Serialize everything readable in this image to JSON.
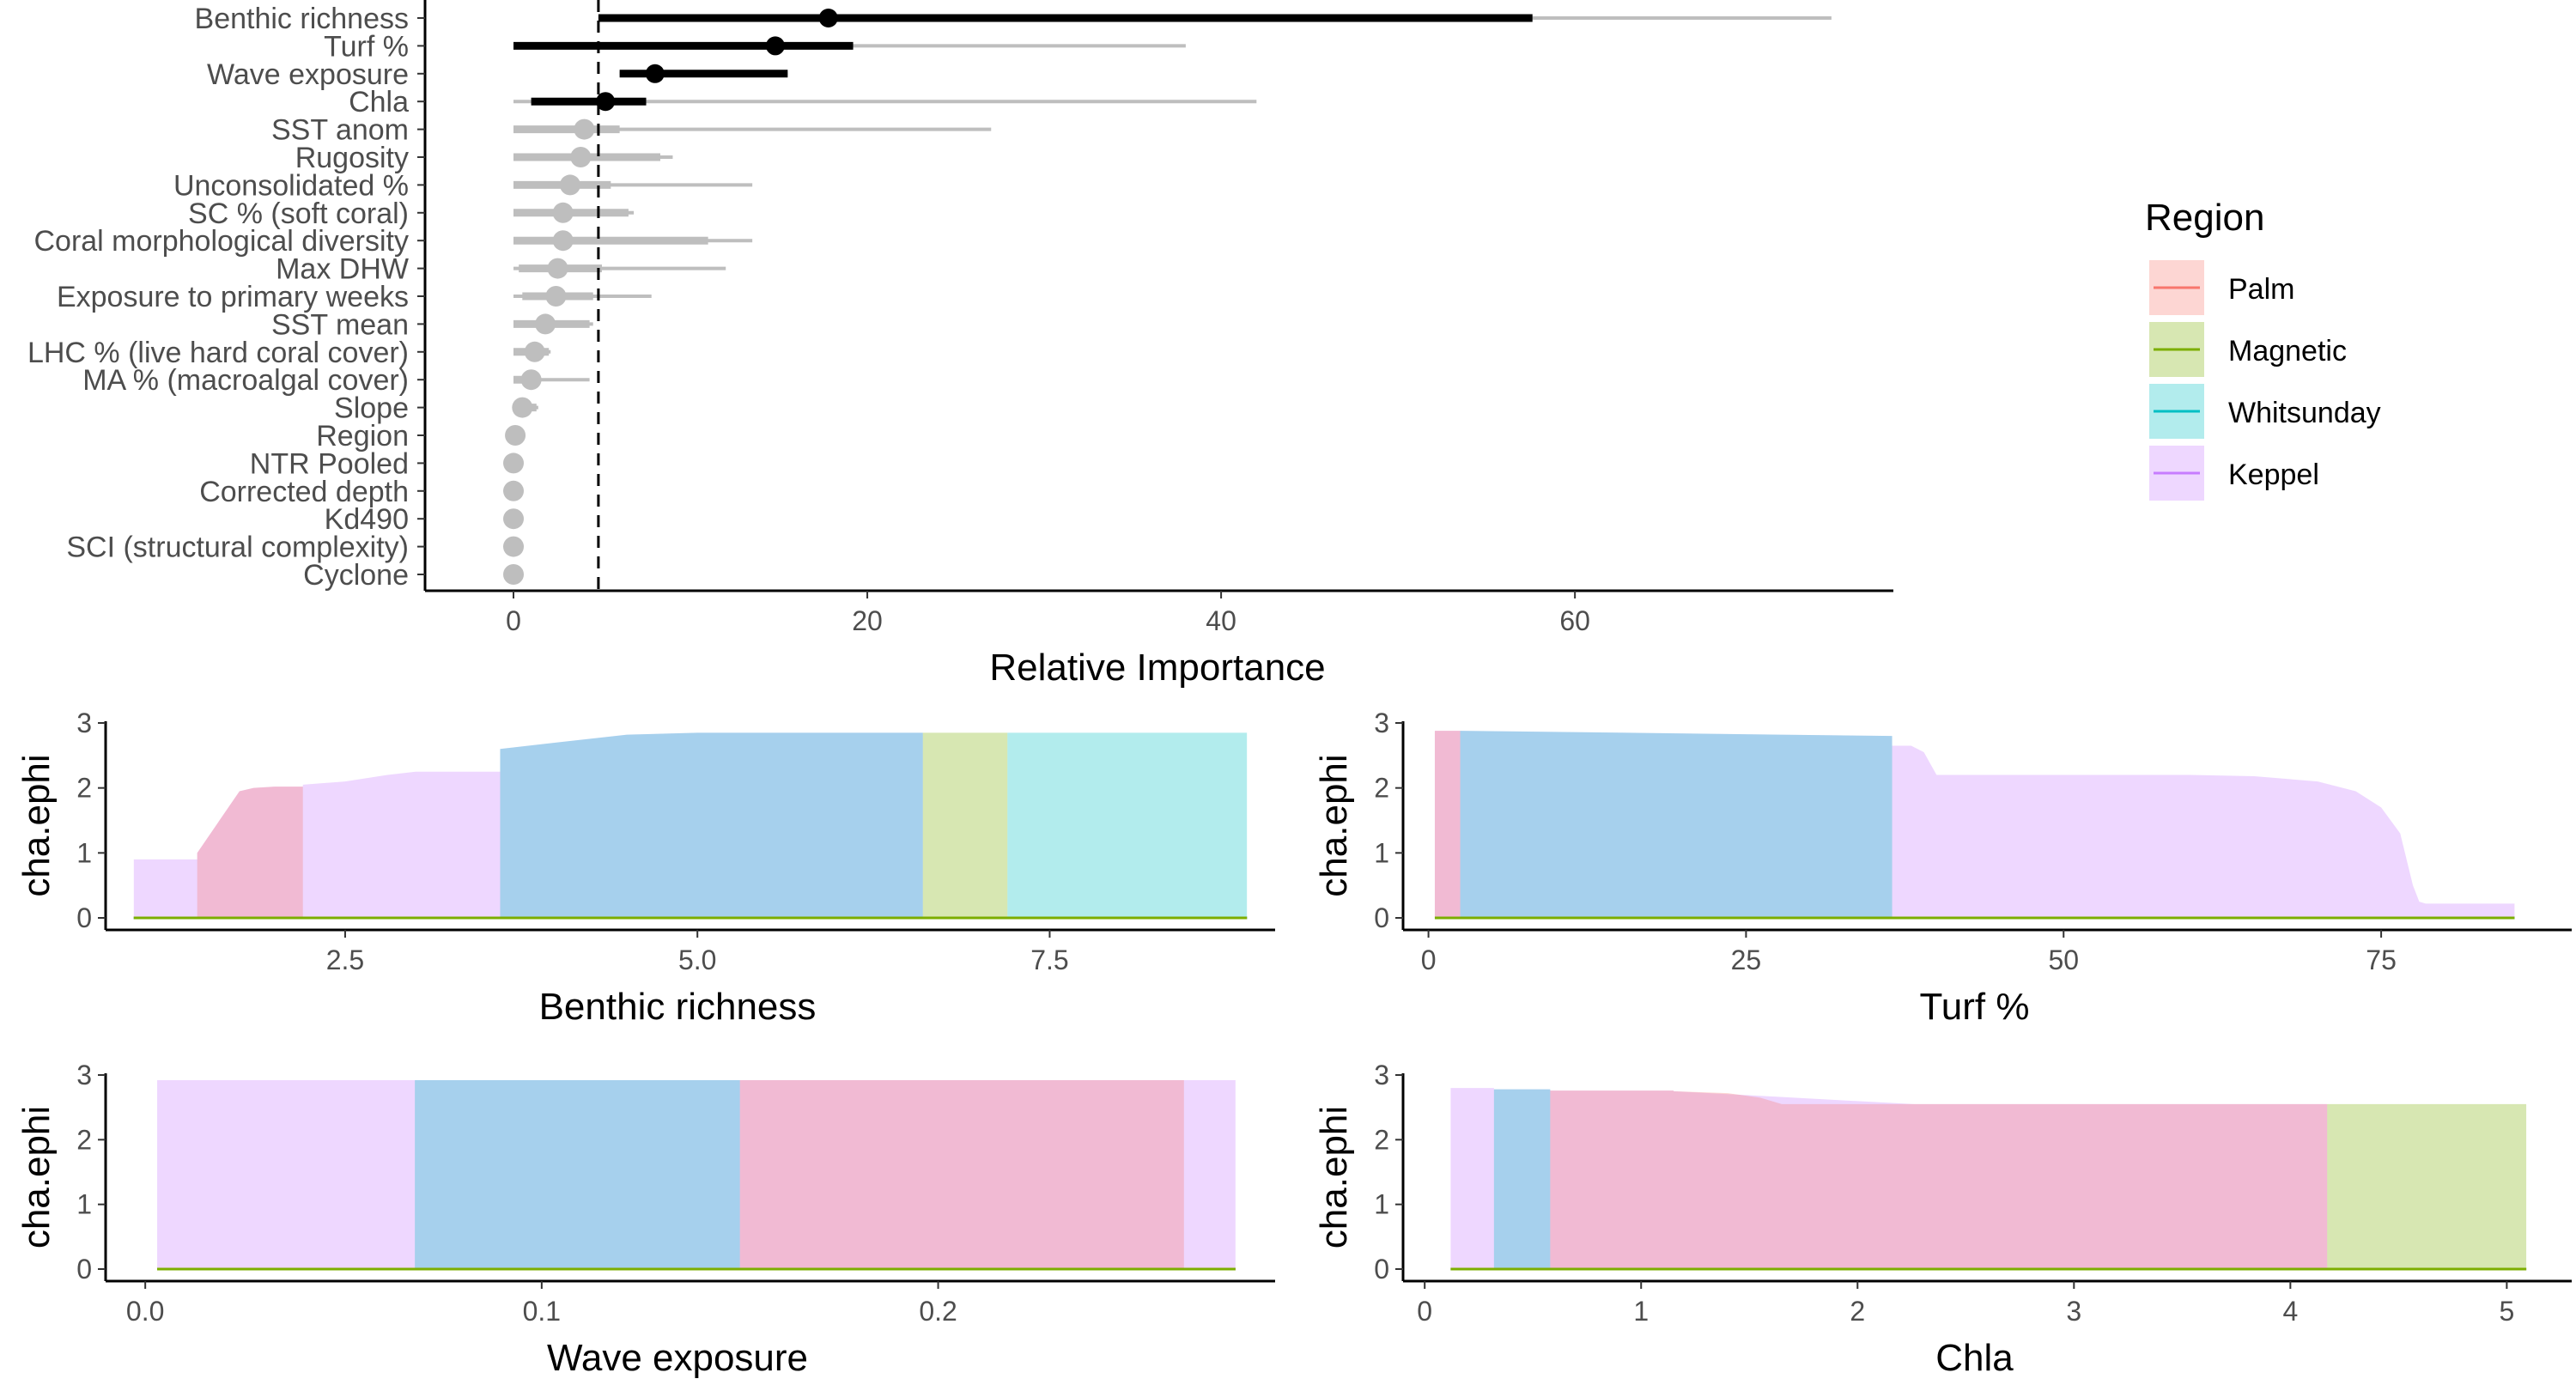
{
  "colors": {
    "Palm": "#F8766D",
    "Magnetic": "#7CAE00",
    "Whitsunday": "#00BFC4",
    "Keppel": "#C77CFF",
    "highlight": "#000000",
    "muted": "#BEBEBE"
  },
  "legend": {
    "title": "Region",
    "items": [
      {
        "label": "Palm",
        "color": "#F8766D"
      },
      {
        "label": "Magnetic",
        "color": "#7CAE00"
      },
      {
        "label": "Whitsunday",
        "color": "#00BFC4"
      },
      {
        "label": "Keppel",
        "color": "#C77CFF"
      }
    ]
  },
  "chart_data": [
    {
      "type": "dot-interval",
      "xlabel": "Relative Importance",
      "xlim": [
        -5,
        78
      ],
      "xticks": [
        0,
        20,
        40,
        60
      ],
      "threshold": 4.8,
      "variables": [
        {
          "name": "Benthic richness",
          "median": 17.8,
          "inner": [
            4.8,
            57.6
          ],
          "outer": [
            4.8,
            74.5
          ],
          "highlight": true
        },
        {
          "name": "Turf %",
          "median": 14.8,
          "inner": [
            0,
            19.2
          ],
          "outer": [
            0,
            38
          ],
          "highlight": true
        },
        {
          "name": "Wave exposure",
          "median": 8,
          "inner": [
            6,
            15.5
          ],
          "outer": [
            6,
            15.5
          ],
          "highlight": true
        },
        {
          "name": "Chla",
          "median": 5.2,
          "inner": [
            1,
            7.5
          ],
          "outer": [
            0,
            42
          ],
          "highlight": true
        },
        {
          "name": "SST anom",
          "median": 4,
          "inner": [
            0,
            6
          ],
          "outer": [
            0,
            27
          ],
          "highlight": false
        },
        {
          "name": "Rugosity",
          "median": 3.8,
          "inner": [
            0,
            8.3
          ],
          "outer": [
            0,
            9
          ],
          "highlight": false
        },
        {
          "name": "Unconsolidated %",
          "median": 3.2,
          "inner": [
            0,
            5.5
          ],
          "outer": [
            0,
            13.5
          ],
          "highlight": false
        },
        {
          "name": "SC % (soft coral)",
          "median": 2.8,
          "inner": [
            0,
            6.5
          ],
          "outer": [
            0,
            6.8
          ],
          "highlight": false
        },
        {
          "name": "Coral morphological diversity",
          "median": 2.8,
          "inner": [
            0,
            11
          ],
          "outer": [
            0,
            13.5
          ],
          "highlight": false
        },
        {
          "name": "Max DHW",
          "median": 2.5,
          "inner": [
            0.3,
            5
          ],
          "outer": [
            0,
            12
          ],
          "highlight": false
        },
        {
          "name": "Exposure to primary weeks",
          "median": 2.4,
          "inner": [
            0.5,
            4.5
          ],
          "outer": [
            0,
            7.8
          ],
          "highlight": false
        },
        {
          "name": "SST mean",
          "median": 1.8,
          "inner": [
            0,
            4.3
          ],
          "outer": [
            0,
            4.5
          ],
          "highlight": false
        },
        {
          "name": "LHC % (live hard coral cover)",
          "median": 1.2,
          "inner": [
            0,
            2
          ],
          "outer": [
            0,
            2.1
          ],
          "highlight": false
        },
        {
          "name": "MA % (macroalgal cover)",
          "median": 1,
          "inner": [
            0,
            1.5
          ],
          "outer": [
            0,
            4.3
          ],
          "highlight": false
        },
        {
          "name": "Slope",
          "median": 0.5,
          "inner": [
            0,
            1.3
          ],
          "outer": [
            0,
            1.4
          ],
          "highlight": false
        },
        {
          "name": "Region",
          "median": 0.1,
          "inner": [
            0,
            0.5
          ],
          "outer": [
            0,
            0.6
          ],
          "highlight": false
        },
        {
          "name": "NTR Pooled",
          "median": 0,
          "inner": [
            0,
            0
          ],
          "outer": [
            0,
            0
          ],
          "highlight": false
        },
        {
          "name": "Corrected depth",
          "median": 0,
          "inner": [
            0,
            0
          ],
          "outer": [
            0,
            0
          ],
          "highlight": false
        },
        {
          "name": "Kd490",
          "median": 0,
          "inner": [
            0,
            0
          ],
          "outer": [
            0,
            0
          ],
          "highlight": false
        },
        {
          "name": "SCI (structural complexity)",
          "median": 0,
          "inner": [
            0,
            0
          ],
          "outer": [
            0,
            0
          ],
          "highlight": false
        },
        {
          "name": "Cyclone",
          "median": 0,
          "inner": [
            0,
            0
          ],
          "outer": [
            0,
            0
          ],
          "highlight": false
        }
      ]
    },
    {
      "type": "area",
      "xlabel": "Benthic richness",
      "ylabel": "cha.ephi",
      "xlim": [
        0.8,
        9.1
      ],
      "ylim": [
        0,
        3.1
      ],
      "xticks": [
        2.5,
        5.0,
        7.5
      ],
      "xtick_labels": [
        "2.5",
        "5.0",
        "7.5"
      ],
      "yticks": [
        0,
        1,
        2,
        3
      ],
      "series": [
        {
          "name": "Keppel",
          "x": [
            1.0,
            1.45,
            1.45,
            1.75,
            1.85,
            2.0,
            2.2,
            2.2,
            2.5,
            2.8,
            3.0,
            3.6,
            3.6,
            4.0,
            4.5,
            5.0,
            6.0,
            6.6,
            6.6,
            8.9
          ],
          "y": [
            0.9,
            0.9,
            1.0,
            1.95,
            2.0,
            2.02,
            2.02,
            2.05,
            2.1,
            2.2,
            2.25,
            2.25,
            2.6,
            2.7,
            2.82,
            2.85,
            2.85,
            2.85,
            0,
            0
          ]
        },
        {
          "name": "Palm",
          "x": [
            1.0,
            1.45,
            1.45,
            1.75,
            1.85,
            2.0,
            2.2,
            2.2,
            6.6,
            7.2,
            7.2,
            8.9
          ],
          "y": [
            0,
            0,
            1.0,
            1.95,
            2.0,
            2.02,
            2.02,
            0,
            0,
            0,
            0,
            0
          ]
        },
        {
          "name": "Whitsunday",
          "x": [
            1.0,
            3.6,
            3.6,
            4.0,
            4.5,
            5.0,
            6.6,
            6.6,
            7.2,
            7.2,
            7.8,
            8.9
          ],
          "y": [
            0,
            0,
            2.6,
            2.7,
            2.82,
            2.85,
            2.85,
            0,
            0,
            2.85,
            2.85,
            2.85
          ]
        },
        {
          "name": "Magnetic",
          "x": [
            1.0,
            6.6,
            6.6,
            7.2,
            7.2,
            8.9
          ],
          "y": [
            0,
            0,
            2.85,
            2.85,
            0,
            0
          ]
        }
      ]
    },
    {
      "type": "area",
      "xlabel": "Turf %",
      "ylabel": "cha.ephi",
      "xlim": [
        -2,
        90
      ],
      "ylim": [
        0,
        3.1
      ],
      "xticks": [
        0,
        25,
        50,
        75
      ],
      "xtick_labels": [
        "0",
        "25",
        "50",
        "75"
      ],
      "yticks": [
        0,
        1,
        2,
        3
      ],
      "series": [
        {
          "name": "Keppel",
          "x": [
            0.5,
            2.5,
            2.5,
            36.5,
            36.5,
            38,
            39,
            40,
            50,
            60,
            65,
            70,
            73,
            75,
            76.5,
            77.5,
            78,
            78.5,
            85.5
          ],
          "y": [
            2.88,
            2.88,
            2.88,
            2.8,
            2.65,
            2.65,
            2.55,
            2.2,
            2.2,
            2.2,
            2.18,
            2.1,
            1.95,
            1.7,
            1.3,
            0.5,
            0.25,
            0.22,
            0.22
          ]
        },
        {
          "name": "Palm",
          "x": [
            0.5,
            2.5,
            2.5,
            85.5
          ],
          "y": [
            2.88,
            2.88,
            0,
            0
          ]
        },
        {
          "name": "Whitsunday",
          "x": [
            0.5,
            2.5,
            2.5,
            36.5,
            36.5,
            85.5
          ],
          "y": [
            0,
            0,
            2.88,
            2.8,
            0,
            0
          ]
        },
        {
          "name": "Magnetic",
          "x": [
            0.5,
            85.5
          ],
          "y": [
            0,
            0
          ]
        }
      ]
    },
    {
      "type": "area",
      "xlabel": "Wave exposure",
      "ylabel": "cha.ephi",
      "xlim": [
        -0.01,
        0.285
      ],
      "ylim": [
        0,
        3.1
      ],
      "xticks": [
        0.0,
        0.1,
        0.2
      ],
      "xtick_labels": [
        "0.0",
        "0.1",
        "0.2"
      ],
      "yticks": [
        0,
        1,
        2,
        3
      ],
      "series": [
        {
          "name": "Keppel",
          "x": [
            0.003,
            0.068,
            0.068,
            0.15,
            0.15,
            0.152,
            0.152,
            0.262,
            0.262,
            0.275
          ],
          "y": [
            2.92,
            2.92,
            2.92,
            2.92,
            2.92,
            2.92,
            2.92,
            2.92,
            2.92,
            2.92
          ]
        },
        {
          "name": "Whitsunday",
          "x": [
            0.003,
            0.068,
            0.068,
            0.15,
            0.15,
            0.275
          ],
          "y": [
            0,
            0,
            2.92,
            2.92,
            0,
            0
          ]
        },
        {
          "name": "Palm",
          "x": [
            0.003,
            0.15,
            0.15,
            0.262,
            0.262,
            0.275
          ],
          "y": [
            0,
            0,
            2.92,
            2.92,
            0,
            0
          ]
        },
        {
          "name": "Magnetic",
          "x": [
            0.003,
            0.275
          ],
          "y": [
            0,
            0
          ]
        }
      ]
    },
    {
      "type": "area",
      "xlabel": "Chla",
      "ylabel": "cha.ephi",
      "xlim": [
        -0.1,
        5.3
      ],
      "ylim": [
        0,
        3.1
      ],
      "xticks": [
        0,
        1,
        2,
        3,
        4,
        5
      ],
      "xtick_labels": [
        "0",
        "1",
        "2",
        "3",
        "4",
        "5"
      ],
      "yticks": [
        0,
        1,
        2,
        3
      ],
      "series": [
        {
          "name": "Keppel",
          "x": [
            0.12,
            0.32,
            0.32,
            0.58,
            0.58,
            1.15,
            1.15,
            2.26,
            2.26,
            4.17,
            4.17,
            5.09
          ],
          "y": [
            2.8,
            2.8,
            2.78,
            2.78,
            2.76,
            2.76,
            2.75,
            2.55,
            2.55,
            2.55,
            0,
            0
          ]
        },
        {
          "name": "Whitsunday",
          "x": [
            0.12,
            0.32,
            0.32,
            0.58,
            0.58,
            5.09
          ],
          "y": [
            0,
            0,
            2.78,
            2.78,
            0,
            0
          ]
        },
        {
          "name": "Palm",
          "x": [
            0.12,
            0.58,
            0.58,
            1.15,
            1.15,
            1.4,
            1.55,
            1.65,
            2.26,
            2.26,
            4.17,
            4.17,
            5.09
          ],
          "y": [
            0,
            0,
            2.76,
            2.76,
            2.75,
            2.72,
            2.65,
            2.55,
            2.55,
            2.55,
            2.55,
            0,
            0
          ]
        },
        {
          "name": "Magnetic",
          "x": [
            0.12,
            1.15,
            1.15,
            2.26,
            2.26,
            4.17,
            4.17,
            5.09
          ],
          "y": [
            0,
            0,
            0,
            0,
            0,
            0,
            2.55,
            2.55
          ]
        }
      ]
    }
  ]
}
